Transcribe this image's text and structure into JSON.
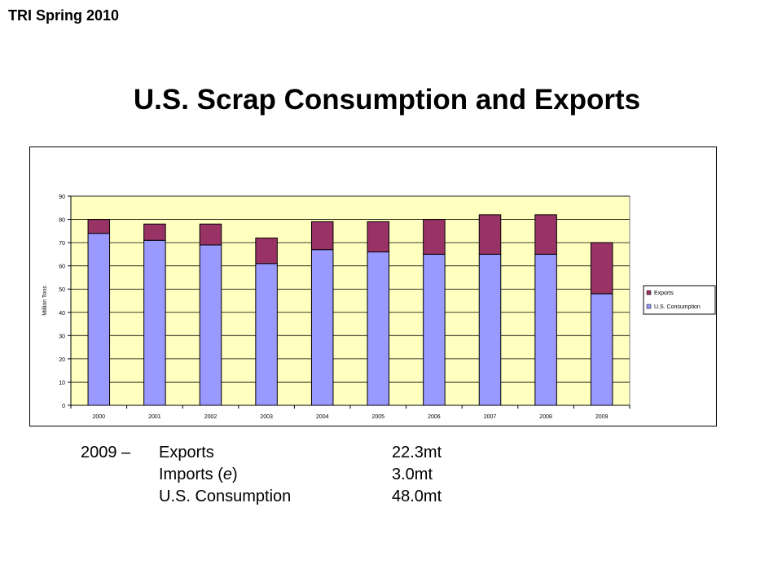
{
  "header": {
    "tag": "TRI Spring 2010"
  },
  "slide": {
    "title": "U.S. Scrap Consumption and Exports"
  },
  "colors": {
    "plot_bg": "#FFFFC0",
    "consumption": "#9999FF",
    "exports": "#993366",
    "gridline": "#000000"
  },
  "chart_data": {
    "type": "bar",
    "stacked": true,
    "title": "",
    "xlabel": "",
    "ylabel": "Million Tons",
    "ylim": [
      0,
      90
    ],
    "yticks": [
      0,
      10,
      20,
      30,
      40,
      50,
      60,
      70,
      80,
      90
    ],
    "grid": true,
    "legend_position": "right",
    "categories": [
      "2000",
      "2001",
      "2002",
      "2003",
      "2004",
      "2005",
      "2006",
      "2007",
      "2008",
      "2009"
    ],
    "series": [
      {
        "name": "U.S. Consumption",
        "values": [
          74,
          71,
          69,
          61,
          67,
          66,
          65,
          65,
          65,
          48
        ]
      },
      {
        "name": "Exports",
        "values": [
          6,
          7,
          9,
          11,
          12,
          13,
          15,
          17,
          17,
          22
        ]
      }
    ],
    "legend": [
      "Exports",
      "U.S. Consumption"
    ]
  },
  "summary": {
    "year_label": "2009 –",
    "rows": [
      {
        "label_prefix": "Exports",
        "label_paren_open": "",
        "label_italic": "",
        "label_paren_close": "",
        "value": "22.3mt"
      },
      {
        "label_prefix": "Imports ",
        "label_paren_open": "(",
        "label_italic": "e",
        "label_paren_close": ")",
        "value": "3.0mt"
      },
      {
        "label_prefix": "U.S. Consumption",
        "label_paren_open": "",
        "label_italic": "",
        "label_paren_close": "",
        "value": "48.0mt"
      }
    ]
  }
}
